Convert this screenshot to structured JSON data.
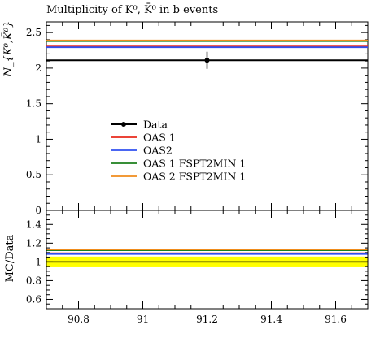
{
  "chart_data": [
    {
      "type": "line",
      "title": "Multiplicity of K⁰, K̄⁰ in b events",
      "ylabel": "N_{K⁰,K̄⁰}",
      "xlabel": "",
      "xlim": [
        90.7,
        91.7
      ],
      "ylim": [
        0,
        2.65
      ],
      "yticks": [
        "0",
        "0.5",
        "1",
        "1.5",
        "2",
        "2.5"
      ],
      "yticks_values": [
        0,
        0.5,
        1,
        1.5,
        2,
        2.5
      ],
      "legend_placement": "center-left",
      "data": {
        "name": "Data",
        "x": 91.2,
        "y": 2.11,
        "yerr": 0.12,
        "color": "#000000"
      },
      "series": [
        {
          "name": "Data",
          "value": 2.11,
          "color": "#000000"
        },
        {
          "name": "OAS 1",
          "value": 2.305,
          "color": "#e8291c"
        },
        {
          "name": "OAS2",
          "value": 2.305,
          "color": "#3050f0"
        },
        {
          "name": "OAS 1 FSPT2MIN 1",
          "value": 2.39,
          "color": "#1b7f1b"
        },
        {
          "name": "OAS 2 FSPT2MIN 1",
          "value": 2.39,
          "color": "#f08c1c"
        }
      ]
    },
    {
      "type": "line",
      "ylabel": "MC/Data",
      "xlim": [
        90.7,
        91.7
      ],
      "ylim": [
        0.5,
        1.55
      ],
      "yticks": [
        "0.6",
        "0.8",
        "1",
        "1.2",
        "1.4"
      ],
      "yticks_values": [
        0.6,
        0.8,
        1.0,
        1.2,
        1.4
      ],
      "xticks": [
        "90.8",
        "91",
        "91.2",
        "91.4",
        "91.6"
      ],
      "xticks_values": [
        90.8,
        91.0,
        91.2,
        91.4,
        91.6
      ],
      "band": {
        "low": 0.943,
        "high": 1.057,
        "color": "#ffff00"
      },
      "series": [
        {
          "name": "Data",
          "value": 1.0,
          "color": "#000000"
        },
        {
          "name": "OAS 1",
          "value": 1.093,
          "color": "#e8291c"
        },
        {
          "name": "OAS2",
          "value": 1.093,
          "color": "#3050f0"
        },
        {
          "name": "OAS 1 FSPT2MIN 1",
          "value": 1.133,
          "color": "#1b7f1b"
        },
        {
          "name": "OAS 2 FSPT2MIN 1",
          "value": 1.133,
          "color": "#f08c1c"
        }
      ]
    }
  ]
}
